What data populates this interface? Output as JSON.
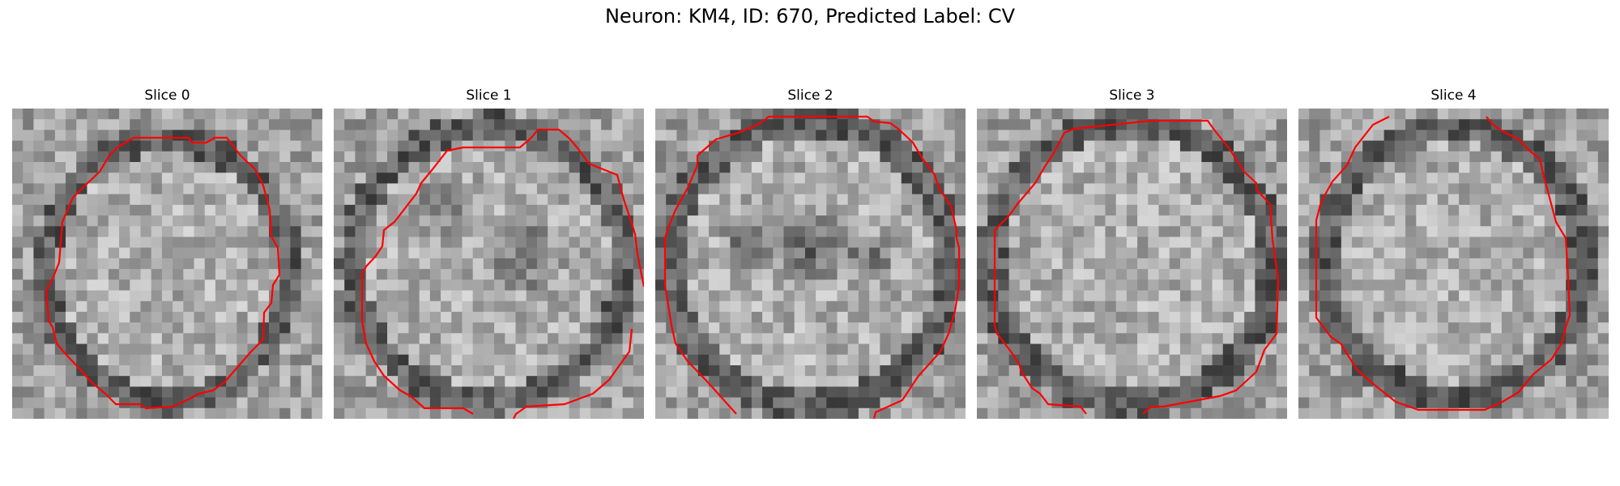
{
  "figure": {
    "title": "Neuron: KM4, ID: 670, Predicted Label: CV"
  },
  "panels": [
    {
      "title": "Slice 0"
    },
    {
      "title": "Slice 1"
    },
    {
      "title": "Slice 2"
    },
    {
      "title": "Slice 3"
    },
    {
      "title": "Slice 4"
    }
  ],
  "colors": {
    "contour": "#ff0000",
    "background": "#ffffff",
    "colormap": "gray"
  }
}
